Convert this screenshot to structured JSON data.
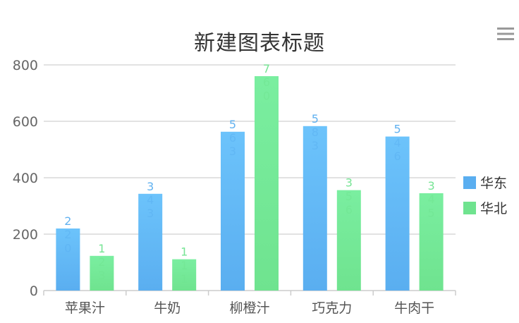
{
  "chart_data": {
    "type": "bar",
    "title": "新建图表标题",
    "categories": [
      "苹果汁",
      "牛奶",
      "柳橙汁",
      "巧克力",
      "牛肉干"
    ],
    "series": [
      {
        "name": "华东",
        "values": [
          220,
          343,
          563,
          583,
          546
        ],
        "color": "#5aaef0",
        "label_color": "#5aaef0"
      },
      {
        "name": "华北",
        "values": [
          123,
          111,
          760,
          356,
          345
        ],
        "color": "#6fe38f",
        "label_color": "#6fe38f"
      }
    ],
    "yticks": [
      0,
      200,
      400,
      600,
      800
    ],
    "ylim": [
      0,
      800
    ],
    "grid": true,
    "legend_position": "right",
    "menu_icon": "hamburger-menu-icon"
  }
}
